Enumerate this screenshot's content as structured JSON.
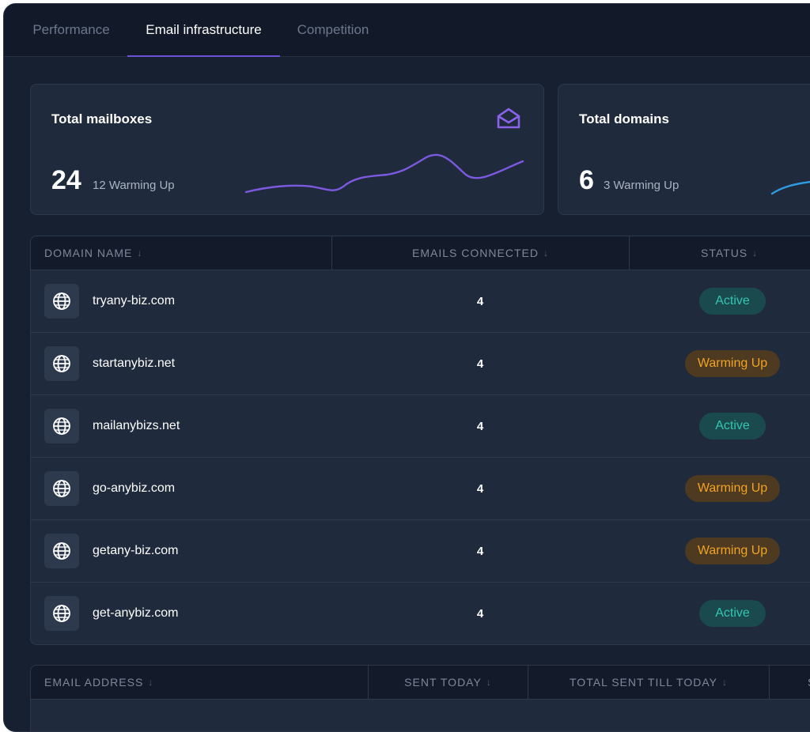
{
  "tabs": [
    {
      "label": "Performance",
      "active": false
    },
    {
      "label": "Email infrastructure",
      "active": true
    },
    {
      "label": "Competition",
      "active": false
    }
  ],
  "cards": {
    "mailboxes": {
      "title": "Total mailboxes",
      "value": "24",
      "sub": "12 Warming Up",
      "icon": "envelope-open-icon"
    },
    "domains": {
      "title": "Total domains",
      "value": "6",
      "sub": "3 Warming Up"
    }
  },
  "domains_table": {
    "headers": {
      "domain": "DOMAIN NAME",
      "emails": "EMAILS CONNECTED",
      "status": "STATUS",
      "sort_arrow": "↓"
    },
    "rows": [
      {
        "domain": "tryany-biz.com",
        "emails": "4",
        "status": "Active"
      },
      {
        "domain": "startanybiz.net",
        "emails": "4",
        "status": "Warming Up"
      },
      {
        "domain": "mailanybizs.net",
        "emails": "4",
        "status": "Active"
      },
      {
        "domain": "go-anybiz.com",
        "emails": "4",
        "status": "Warming Up"
      },
      {
        "domain": "getany-biz.com",
        "emails": "4",
        "status": "Warming Up"
      },
      {
        "domain": "get-anybiz.com",
        "emails": "4",
        "status": "Active"
      }
    ]
  },
  "mailbox_table": {
    "headers": {
      "email": "EMAIL ADDRESS",
      "sent_today": "SENT TODAY",
      "total_sent": "TOTAL SENT TILL TODAY",
      "next": "S",
      "sort_arrow": "↓"
    }
  },
  "colors": {
    "accent": "#6e52d6",
    "active": "#32c6b2",
    "warming": "#f1a323",
    "spark_domains": "#2f9be0"
  }
}
